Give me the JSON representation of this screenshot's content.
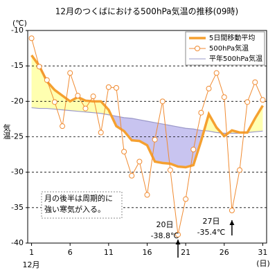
{
  "chart_data": {
    "type": "line",
    "title": "12月のつくばにおける500hPa気温の推移(09時)",
    "y_unit": "(℃)",
    "y_label": "気温",
    "x_label": "12月",
    "x_unit": "(日)",
    "x": [
      1,
      2,
      3,
      4,
      5,
      6,
      7,
      8,
      9,
      10,
      11,
      12,
      13,
      14,
      15,
      16,
      17,
      18,
      19,
      20,
      21,
      22,
      23,
      24,
      25,
      26,
      27,
      28,
      29,
      30,
      31
    ],
    "xlim": [
      0.5,
      31.5
    ],
    "xticks": [
      1,
      6,
      11,
      16,
      21,
      26,
      31
    ],
    "ylim": [
      -40,
      -10
    ],
    "yticks": [
      -10,
      -15,
      -20,
      -25,
      -30,
      -35,
      -40
    ],
    "grid": true,
    "series": [
      {
        "name": "5日間移動平均",
        "color": "#f5a030",
        "style": "thick",
        "values": [
          -13.5,
          -15.0,
          -17.2,
          -18.4,
          -19.2,
          -20.0,
          -19.4,
          -19.9,
          -20.0,
          -20.0,
          -21.2,
          -23.5,
          -24.2,
          -25.5,
          -25.6,
          -26.2,
          -28.5,
          -28.7,
          -28.8,
          -29.2,
          -29.3,
          -29.0,
          -25.6,
          -21.8,
          -23.7,
          -24.9,
          -24.1,
          -24.4,
          -24.4,
          -22.4,
          -20.6
        ]
      },
      {
        "name": "500hPa気温",
        "color": "#f08a30",
        "style": "markers",
        "values": [
          -11.1,
          -15.1,
          -17.0,
          -20.1,
          -23.5,
          -16.0,
          -19.2,
          -21.0,
          -19.3,
          -24.4,
          -18.0,
          -18.1,
          -27.1,
          -30.5,
          -28.5,
          -33.2,
          -25.4,
          -20.0,
          -29.7,
          -38.8,
          -33.8,
          -26.8,
          -21.6,
          -18.2,
          -16.0,
          -19.4,
          -35.4,
          -29.7,
          -20.1,
          -17.3,
          -19.8
        ]
      },
      {
        "name": "平年500hPa気温",
        "color": "#9a98c8",
        "style": "normal",
        "values": [
          -20.9,
          -21.0,
          -21.0,
          -21.1,
          -21.2,
          -21.3,
          -21.4,
          -21.5,
          -21.6,
          -21.7,
          -21.9,
          -22.1,
          -22.3,
          -22.4,
          -22.6,
          -22.8,
          -23.0,
          -23.2,
          -23.4,
          -23.6,
          -23.8,
          -23.9,
          -24.1,
          -24.2,
          -24.4,
          -24.5,
          -24.5,
          -24.5,
          -24.4,
          -24.3,
          -24.2
        ]
      }
    ],
    "fill_above_color": "#ffffb0",
    "fill_below_color": "#c8c4f0",
    "annotations": [
      {
        "lines": [
          "月の後半は周期的に",
          "強い寒気が入る。"
        ]
      },
      {
        "lines": [
          "20日",
          "-38.8℃"
        ]
      },
      {
        "lines": [
          "27日",
          "-35.4℃"
        ]
      }
    ]
  }
}
